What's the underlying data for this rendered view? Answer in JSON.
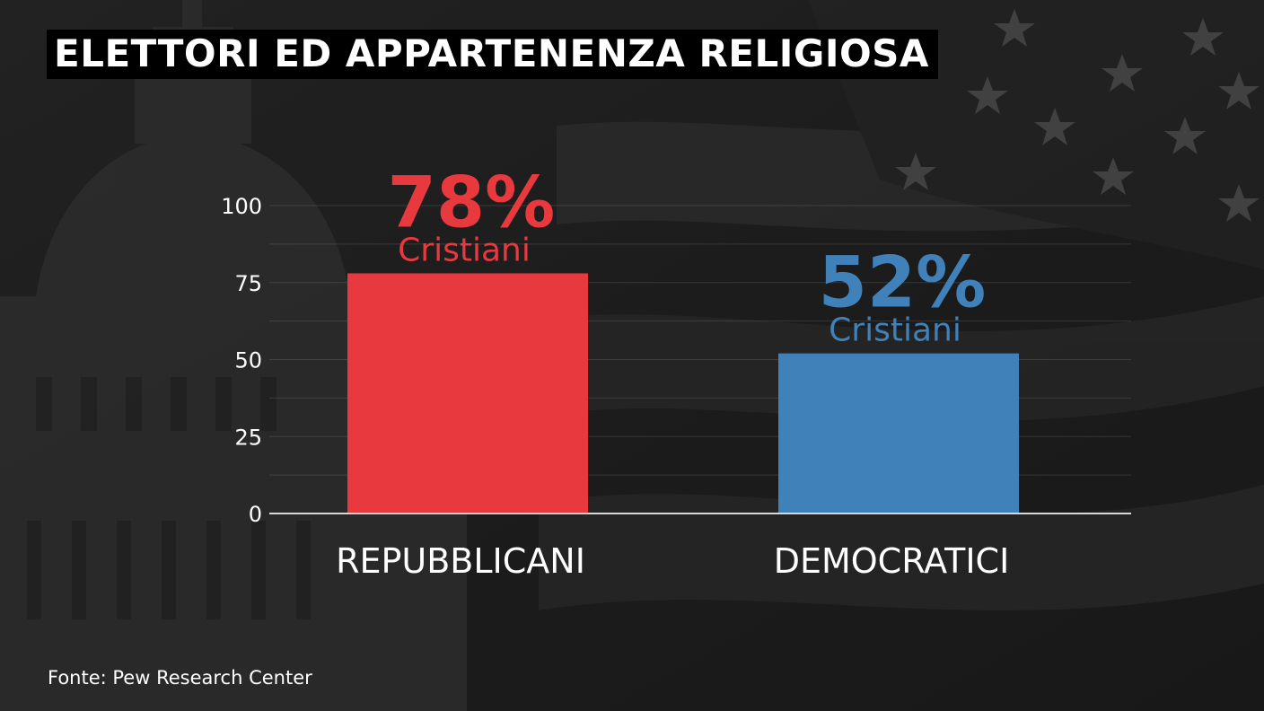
{
  "title": "ELETTORI ED APPARTENENZA RELIGIOSA",
  "source": "Fonte: Pew Research Center",
  "chart_data": {
    "type": "bar",
    "categories": [
      "REPUBBLICANI",
      "DEMOCRATICI"
    ],
    "values": [
      78,
      52
    ],
    "value_labels": [
      "78%",
      "52%"
    ],
    "sublabels": [
      "Cristiani",
      "Cristiani"
    ],
    "colors": [
      "#e8393f",
      "#3f81b8"
    ],
    "label_colors": [
      "#e8393f",
      "#3f81b8"
    ],
    "y_ticks": [
      0,
      25,
      50,
      75,
      100
    ],
    "ylim": [
      0,
      100
    ],
    "grid": true,
    "title": "ELETTORI ED APPARTENENZA RELIGIOSA",
    "xlabel": "",
    "ylabel": ""
  }
}
